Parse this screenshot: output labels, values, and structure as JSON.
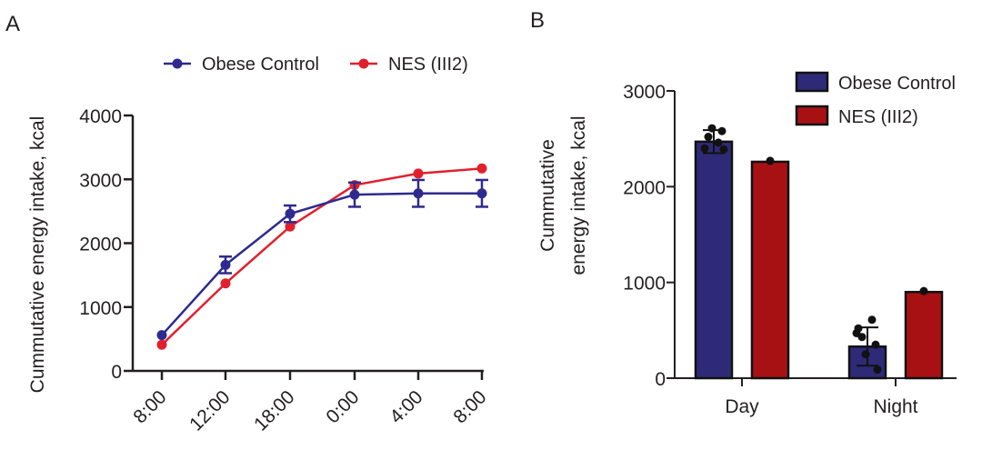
{
  "panels": {
    "a_label": "A",
    "b_label": "B"
  },
  "chart_data": [
    {
      "type": "line",
      "panel": "A",
      "title": "",
      "xlabel": "",
      "ylabel": "Cummutative energy intake, kcal",
      "categories": [
        "8:00",
        "12:00",
        "18:00",
        "0:00",
        "4:00",
        "8:00"
      ],
      "ylim": [
        0,
        4000
      ],
      "yticks": [
        0,
        1000,
        2000,
        3000,
        4000
      ],
      "legend_position": "top",
      "grid": false,
      "series": [
        {
          "name": "Obese Control",
          "color": "#2e2a8f",
          "values": [
            560,
            1660,
            2460,
            2760,
            2780,
            2780
          ],
          "errors": [
            0,
            130,
            130,
            190,
            210,
            210
          ]
        },
        {
          "name": "NES (III2)",
          "color": "#e0212d",
          "values": [
            410,
            1370,
            2260,
            2910,
            3090,
            3170
          ],
          "errors": [
            0,
            0,
            0,
            0,
            0,
            0
          ]
        }
      ]
    },
    {
      "type": "bar",
      "panel": "B",
      "title": "",
      "xlabel": "",
      "ylabel_line1": "Cummutative",
      "ylabel_line2": "energy intake, kcal",
      "categories": [
        "Day",
        "Night"
      ],
      "ylim": [
        0,
        3000
      ],
      "yticks": [
        0,
        1000,
        2000,
        3000
      ],
      "legend_position": "top-right",
      "grid": false,
      "series": [
        {
          "name": "Obese Control",
          "color": "#2e2a78",
          "values": [
            2470,
            330
          ],
          "errors": [
            120,
            200
          ],
          "points": [
            [
              2400,
              2460,
              2520,
              2580,
              2610,
              2390
            ],
            [
              520,
              610,
              430,
              350,
              250,
              90,
              470
            ]
          ]
        },
        {
          "name": "NES (III2)",
          "color": "#a81114",
          "values": [
            2260,
            900
          ],
          "errors": [
            0,
            0
          ],
          "points": [
            [
              2270
            ],
            [
              910
            ]
          ]
        }
      ]
    }
  ]
}
